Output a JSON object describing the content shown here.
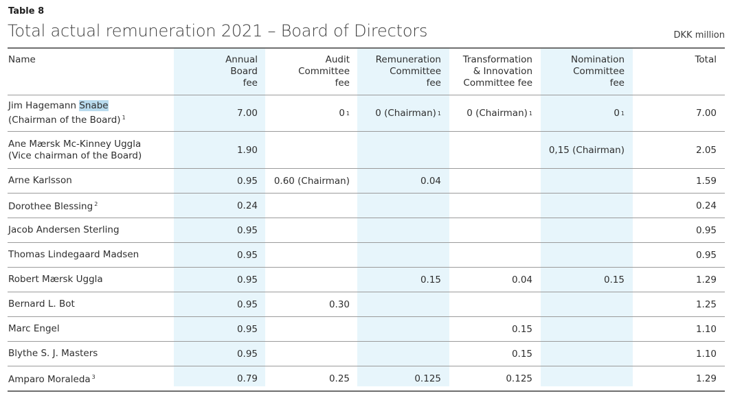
{
  "table_label": "Table 8",
  "title": "Total actual remuneration 2021 – Board of Directors",
  "unit": "DKK million",
  "headers": {
    "name": "Name",
    "annual": "Annual\nBoard\nfee",
    "audit": "Audit\nCommittee\nfee",
    "rem": "Remuneration\nCommittee\nfee",
    "trans": "Transformation\n& Innovation\nCommittee fee",
    "nom": "Nomination\nCommittee\nfee",
    "total": "Total"
  },
  "rows": [
    {
      "name1": "Jim Hagemann ",
      "name1_hl": "Snabe",
      "name2": "(Chairman of the Board)",
      "name2_sup": "1",
      "annual": "7.00",
      "audit": "0",
      "audit_sup": "1",
      "rem": "0 (Chairman)",
      "rem_sup": "1",
      "trans": "0 (Chairman)",
      "trans_sup": "1",
      "nom": "0",
      "nom_sup": "1",
      "total": "7.00"
    },
    {
      "name1": "Ane Mærsk Mc-Kinney Uggla",
      "name2": "(Vice chairman of the Board)",
      "annual": "1.90",
      "nom": "0,15 (Chairman)",
      "total": "2.05"
    },
    {
      "name1": "Arne Karlsson",
      "annual": "0.95",
      "audit": "0.60 (Chairman)",
      "rem": "0.04",
      "total": "1.59"
    },
    {
      "name1": "Dorothee Blessing",
      "name1_sup": "2",
      "annual": "0.24",
      "total": "0.24"
    },
    {
      "name1": "Jacob Andersen Sterling",
      "annual": "0.95",
      "total": "0.95"
    },
    {
      "name1": "Thomas Lindegaard Madsen",
      "annual": "0.95",
      "total": "0.95"
    },
    {
      "name1": "Robert Mærsk Uggla",
      "annual": "0.95",
      "rem": "0.15",
      "trans": "0.04",
      "nom": "0.15",
      "total": "1.29"
    },
    {
      "name1": "Bernard L. Bot",
      "annual": "0.95",
      "audit": "0.30",
      "total": "1.25"
    },
    {
      "name1": "Marc Engel",
      "annual": "0.95",
      "trans": "0.15",
      "total": "1.10"
    },
    {
      "name1": "Blythe S. J. Masters",
      "annual": "0.95",
      "trans": "0.15",
      "total": "1.10"
    },
    {
      "name1": "Amparo Moraleda",
      "name1_sup": "3",
      "annual": "0.79",
      "audit": "0.25",
      "rem": "0.125",
      "trans": "0.125",
      "total": "1.29"
    }
  ]
}
